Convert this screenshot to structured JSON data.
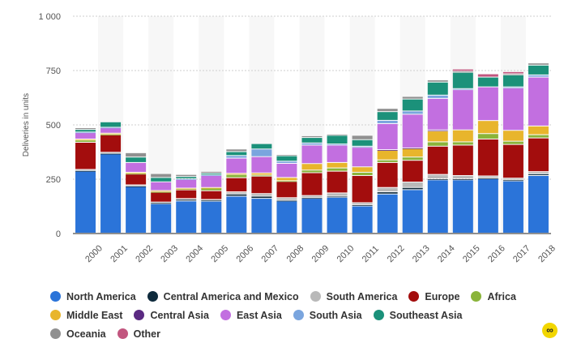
{
  "chart_data": {
    "type": "bar",
    "stacked": true,
    "title": "",
    "xlabel": "",
    "ylabel": "Deliveries in units",
    "ylim": [
      0,
      1000
    ],
    "yticks": [
      0,
      250,
      500,
      750,
      1000
    ],
    "ytick_labels": [
      "0",
      "250",
      "500",
      "750",
      "1 000"
    ],
    "grid": true,
    "legend_position": "bottom",
    "categories": [
      "2000",
      "2001",
      "2002",
      "2003",
      "2004",
      "2005",
      "2006",
      "2007",
      "2008",
      "2009",
      "2010",
      "2011",
      "2012",
      "2013",
      "2014",
      "2015",
      "2016",
      "2017",
      "2018"
    ],
    "series": [
      {
        "name": "North America",
        "color": "#2b74d9",
        "values": [
          285,
          365,
          215,
          135,
          148,
          147,
          170,
          160,
          148,
          160,
          165,
          125,
          180,
          200,
          245,
          245,
          250,
          240,
          265
        ]
      },
      {
        "name": "Central America and Mexico",
        "color": "#0e2a3c",
        "values": [
          3,
          2,
          2,
          5,
          8,
          5,
          10,
          10,
          3,
          3,
          5,
          5,
          10,
          10,
          5,
          5,
          3,
          5,
          8
        ]
      },
      {
        "name": "South America",
        "color": "#b9b9b9",
        "values": [
          5,
          5,
          5,
          3,
          3,
          3,
          10,
          12,
          12,
          10,
          15,
          10,
          20,
          25,
          20,
          15,
          10,
          8,
          10
        ]
      },
      {
        "name": "Europe",
        "color": "#a30d0d",
        "values": [
          125,
          80,
          50,
          45,
          40,
          40,
          65,
          80,
          75,
          105,
          100,
          125,
          115,
          100,
          130,
          140,
          170,
          155,
          155
        ]
      },
      {
        "name": "Africa",
        "color": "#8ab43a",
        "values": [
          10,
          3,
          3,
          3,
          5,
          12,
          15,
          5,
          3,
          12,
          15,
          15,
          12,
          15,
          20,
          15,
          25,
          15,
          15
        ]
      },
      {
        "name": "Middle East",
        "color": "#e8b52c",
        "values": [
          5,
          5,
          5,
          5,
          3,
          3,
          5,
          10,
          15,
          30,
          25,
          25,
          45,
          40,
          50,
          55,
          60,
          50,
          40
        ]
      },
      {
        "name": "Central Asia",
        "color": "#5b2a82",
        "values": [
          0,
          0,
          0,
          0,
          0,
          0,
          0,
          0,
          0,
          0,
          0,
          0,
          2,
          2,
          5,
          0,
          0,
          0,
          0
        ]
      },
      {
        "name": "East Asia",
        "color": "#c26fe0",
        "values": [
          30,
          25,
          45,
          40,
          40,
          55,
          70,
          75,
          65,
          85,
          80,
          90,
          120,
          155,
          145,
          185,
          155,
          195,
          225
        ]
      },
      {
        "name": "South Asia",
        "color": "#7aa5de",
        "values": [
          2,
          2,
          0,
          0,
          3,
          3,
          12,
          35,
          10,
          10,
          5,
          5,
          15,
          15,
          15,
          5,
          0,
          5,
          10
        ]
      },
      {
        "name": "Southeast Asia",
        "color": "#1b917a",
        "values": [
          12,
          25,
          25,
          20,
          10,
          8,
          18,
          25,
          25,
          25,
          40,
          30,
          40,
          55,
          60,
          75,
          45,
          55,
          45
        ]
      },
      {
        "name": "Oceania",
        "color": "#909090",
        "values": [
          8,
          0,
          20,
          18,
          10,
          8,
          12,
          0,
          5,
          8,
          5,
          20,
          15,
          12,
          10,
          5,
          0,
          5,
          10
        ]
      },
      {
        "name": "Other",
        "color": "#c2567f",
        "values": [
          0,
          0,
          0,
          0,
          0,
          0,
          0,
          0,
          0,
          0,
          0,
          0,
          0,
          0,
          0,
          10,
          15,
          10,
          0
        ]
      }
    ]
  }
}
